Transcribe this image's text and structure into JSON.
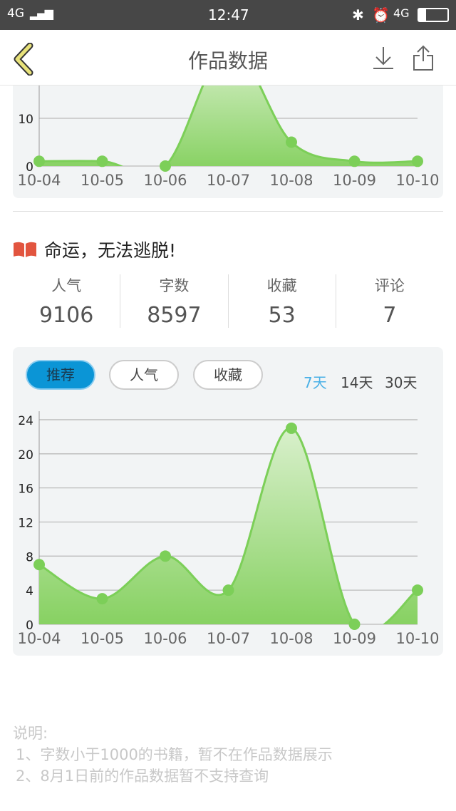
{
  "status_bar": {
    "network": "4G",
    "time": "12:47",
    "network_right": "4G"
  },
  "header": {
    "title": "作品数据",
    "back_icon": "chevron-left-icon",
    "download_icon": "download-icon",
    "share_icon": "share-icon"
  },
  "colors": {
    "accent": "#0b95d6",
    "series": "#7ccf58",
    "range_active": "#4ab0e6"
  },
  "book": {
    "title": "命运，无法逃脱!",
    "icon": "book-icon"
  },
  "stats": [
    {
      "label": "人气",
      "value": "9106"
    },
    {
      "label": "字数",
      "value": "8597"
    },
    {
      "label": "收藏",
      "value": "53"
    },
    {
      "label": "评论",
      "value": "7"
    }
  ],
  "tabs": [
    {
      "label": "推荐",
      "active": true
    },
    {
      "label": "人气",
      "active": false
    },
    {
      "label": "收藏",
      "active": false
    }
  ],
  "ranges": [
    {
      "label": "7天",
      "active": true
    },
    {
      "label": "14天",
      "active": false
    },
    {
      "label": "30天",
      "active": false
    }
  ],
  "notes": {
    "title": "说明:",
    "items": [
      "1、字数小于1000的书籍，暂不在作品数据展示",
      "2、8月1日前的作品数据暂不支持查询"
    ]
  },
  "chart_data": [
    {
      "type": "area",
      "categories": [
        "10-04",
        "10-05",
        "10-06",
        "10-07",
        "10-08",
        "10-09",
        "10-10"
      ],
      "values": [
        1,
        1,
        0,
        25,
        5,
        1,
        1
      ],
      "yticks": [
        0,
        10
      ],
      "grid": true,
      "note": "partially scrolled out of view"
    },
    {
      "type": "area",
      "categories": [
        "10-04",
        "10-05",
        "10-06",
        "10-07",
        "10-08",
        "10-09",
        "10-10"
      ],
      "values": [
        7,
        3,
        8,
        4,
        23,
        0,
        4
      ],
      "yticks": [
        0,
        4,
        8,
        12,
        16,
        20,
        24
      ],
      "ylim": [
        0,
        24
      ],
      "grid": true
    }
  ]
}
